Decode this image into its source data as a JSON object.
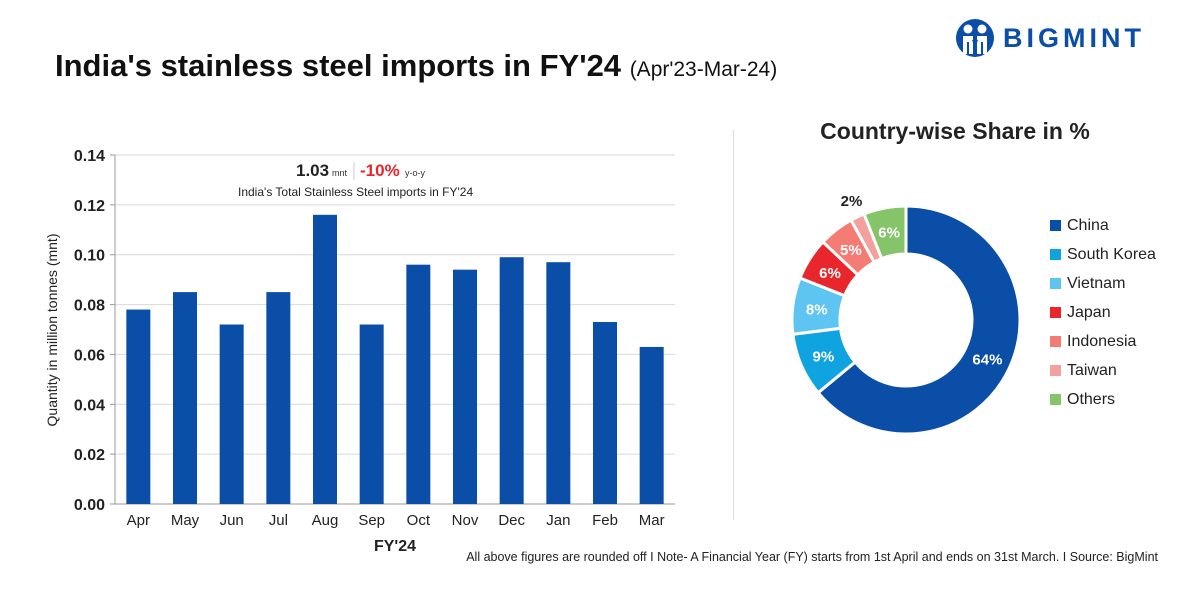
{
  "header": {
    "title": "India's stainless steel imports in FY'24",
    "subtitle": "(Apr'23-Mar-24)",
    "logo_text": "BIGMINT"
  },
  "footnote": "All above figures are rounded off  I  Note- A Financial Year (FY) starts from 1st April and ends on 31st March.  I  Source: BigMint",
  "annotation": {
    "total": "1.03",
    "total_unit": "mnt",
    "change": "-10%",
    "change_unit": "y-o-y",
    "caption": "India's Total Stainless Steel imports  in FY'24",
    "change_color": "#e8262b"
  },
  "chart_data": [
    {
      "type": "bar",
      "title": "",
      "xlabel": "FY'24",
      "ylabel": "Quantity in million tonnes (mnt)",
      "categories": [
        "Apr",
        "May",
        "Jun",
        "Jul",
        "Aug",
        "Sep",
        "Oct",
        "Nov",
        "Dec",
        "Jan",
        "Feb",
        "Mar"
      ],
      "values": [
        0.078,
        0.085,
        0.072,
        0.085,
        0.116,
        0.072,
        0.096,
        0.094,
        0.099,
        0.097,
        0.073,
        0.063
      ],
      "ylim": [
        0,
        0.14
      ],
      "yticks": [
        "0.00",
        "0.02",
        "0.04",
        "0.06",
        "0.08",
        "0.10",
        "0.12",
        "0.14"
      ],
      "grid": true,
      "color": "#0a4ea8"
    },
    {
      "type": "pie",
      "title": "Country-wise Share in %",
      "donut": true,
      "legend": "right",
      "labels": [
        "China",
        "South Korea",
        "Vietnam",
        "Japan",
        "Indonesia",
        "Taiwan",
        "Others"
      ],
      "values": [
        64,
        9,
        8,
        6,
        5,
        2,
        6
      ],
      "colors": [
        "#0a4ea8",
        "#0fa3e0",
        "#5ec4f2",
        "#e8262b",
        "#f47c75",
        "#f2a19c",
        "#86c46a"
      ]
    }
  ]
}
